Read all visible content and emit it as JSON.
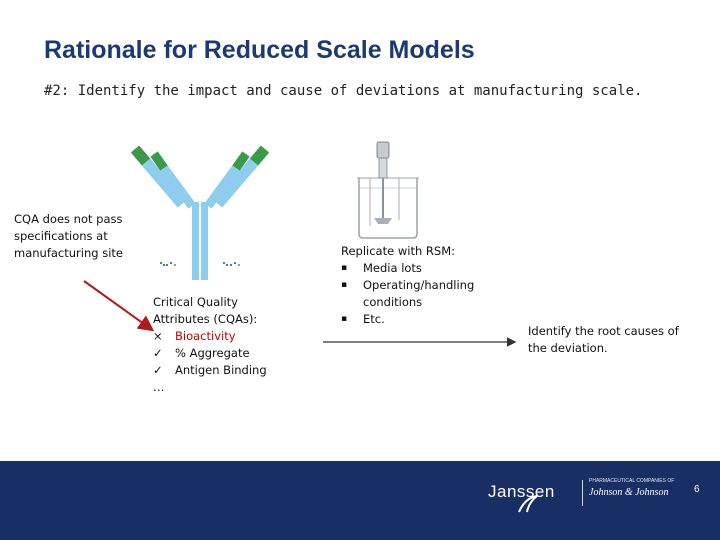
{
  "slide": {
    "title": "Rationale for Reduced Scale Models",
    "subtitle": "#2: Identify the impact and cause of deviations at manufacturing scale.",
    "cqa_note": [
      "CQA does not pass",
      "specifications at",
      "manufacturing site"
    ],
    "cqa_block": {
      "heading": [
        "Critical Quality",
        "Attributes (CQAs):"
      ],
      "items": [
        {
          "mark": "×",
          "text": "Bioactivity",
          "status": "fail"
        },
        {
          "mark": "✓",
          "text": "% Aggregate",
          "status": "pass"
        },
        {
          "mark": "✓",
          "text": "Antigen Binding",
          "status": "pass"
        }
      ],
      "ellipsis": "…"
    },
    "rsm_block": {
      "heading": "Replicate with RSM:",
      "items": [
        {
          "bullet": "▪",
          "lines": [
            "Media lots"
          ]
        },
        {
          "bullet": "▪",
          "lines": [
            "Operating/handling",
            "conditions"
          ]
        },
        {
          "bullet": "▪",
          "lines": [
            "Etc."
          ]
        }
      ]
    },
    "root_cause": [
      "Identify the root causes of",
      "the deviation."
    ]
  },
  "footer": {
    "brand": "Janssen",
    "tagline": "PHARMACEUTICAL COMPANIES OF",
    "parent": "Johnson & Johnson",
    "page_number": "6"
  },
  "colors": {
    "title": "#1b3a74",
    "footer_bg": "#182f65",
    "antibody_light": "#8fcdef",
    "antibody_green": "#3b9a4a",
    "red_arrow": "#b11a1a",
    "fail_text": "#c00000"
  },
  "icons": [
    "antibody-icon",
    "bioreactor-icon",
    "red-arrow-icon",
    "black-arrow-icon"
  ]
}
